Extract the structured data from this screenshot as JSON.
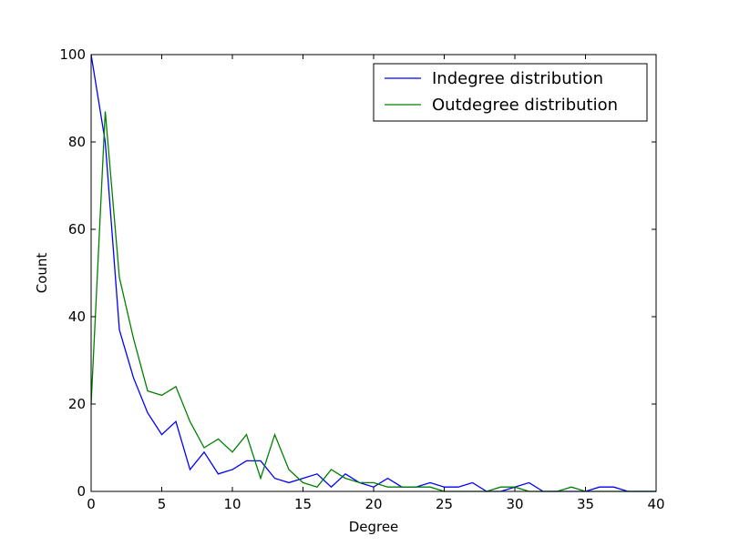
{
  "chart_data": {
    "type": "line",
    "xlabel": "Degree",
    "ylabel": "Count",
    "xlim": [
      0,
      40
    ],
    "ylim": [
      0,
      100
    ],
    "xticks": [
      0,
      5,
      10,
      15,
      20,
      25,
      30,
      35,
      40
    ],
    "yticks": [
      0,
      20,
      40,
      60,
      80,
      100
    ],
    "grid": false,
    "legend_position": "top-right",
    "series": [
      {
        "name": "Indegree distribution",
        "color": "#0000ff",
        "x": [
          0,
          1,
          2,
          3,
          4,
          5,
          6,
          7,
          8,
          9,
          10,
          11,
          12,
          13,
          14,
          15,
          16,
          17,
          18,
          19,
          20,
          21,
          22,
          23,
          24,
          25,
          26,
          27,
          28,
          29,
          30,
          31,
          32,
          33,
          34,
          35,
          36,
          37,
          38,
          39,
          40
        ],
        "values": [
          100,
          80,
          37,
          26,
          18,
          13,
          16,
          5,
          9,
          4,
          5,
          7,
          7,
          3,
          2,
          3,
          4,
          1,
          4,
          2,
          1,
          3,
          1,
          1,
          2,
          1,
          1,
          2,
          0,
          0,
          1,
          2,
          0,
          0,
          0,
          0,
          1,
          1,
          0,
          0,
          0
        ]
      },
      {
        "name": "Outdegree distribution",
        "color": "#008000",
        "x": [
          0,
          1,
          2,
          3,
          4,
          5,
          6,
          7,
          8,
          9,
          10,
          11,
          12,
          13,
          14,
          15,
          16,
          17,
          18,
          19,
          20,
          21,
          22,
          23,
          24,
          25,
          26,
          27,
          28,
          29,
          30,
          31,
          32,
          33,
          34,
          35,
          36,
          37,
          38,
          39,
          40
        ],
        "values": [
          20,
          87,
          49,
          35,
          23,
          22,
          24,
          16,
          10,
          12,
          9,
          13,
          3,
          13,
          5,
          2,
          1,
          5,
          3,
          2,
          2,
          1,
          1,
          1,
          1,
          0,
          0,
          0,
          0,
          1,
          1,
          0,
          0,
          0,
          1,
          0,
          0,
          0,
          0,
          0,
          0
        ]
      }
    ]
  }
}
